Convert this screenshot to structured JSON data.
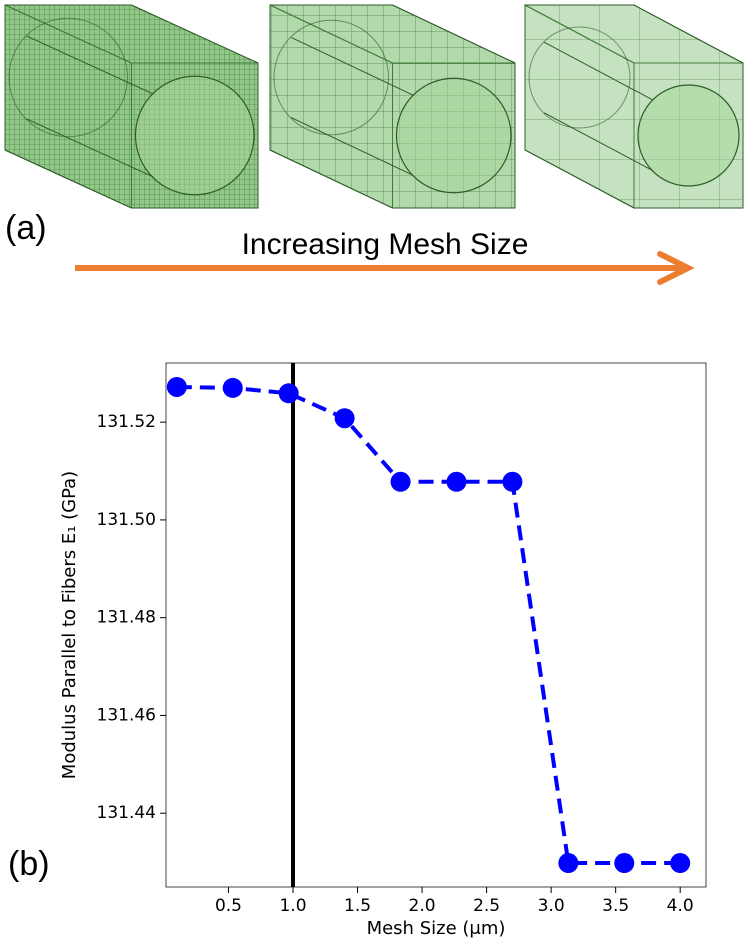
{
  "panel_a": {
    "label": "(a)",
    "arrow_text": "Increasing Mesh Size"
  },
  "chart_data": {
    "type": "line",
    "panel_label": "(b)",
    "x_label": "Mesh Size (μm)",
    "y_label": "Modulus Parallel to Fibers E₁ (GPa)",
    "x": [
      0.1,
      0.5333,
      0.9667,
      1.4,
      1.8333,
      2.2667,
      2.7,
      3.1333,
      3.5667,
      4.0
    ],
    "values": [
      131.5272,
      131.527,
      131.5259,
      131.5208,
      131.5078,
      131.5078,
      131.5078,
      131.4298,
      131.4298,
      131.4298
    ],
    "color": "#0000ff",
    "vline_x": 1.0,
    "vline_color": "#000000",
    "xlim": [
      0.016,
      4.2
    ],
    "ylim": [
      131.4249,
      131.5321
    ],
    "xticks": [
      0.5,
      {
        "value": 1.0,
        "label": "1.0"
      },
      1.5,
      {
        "value": 2.0,
        "label": "2.0"
      },
      2.5,
      {
        "value": 3.0,
        "label": "3.0"
      },
      3.5,
      {
        "value": 4.0,
        "label": "4.0"
      }
    ],
    "yticks": [
      131.44,
      131.46,
      131.48,
      {
        "value": 131.5,
        "label": "131.50"
      },
      131.52
    ],
    "grid": false
  }
}
